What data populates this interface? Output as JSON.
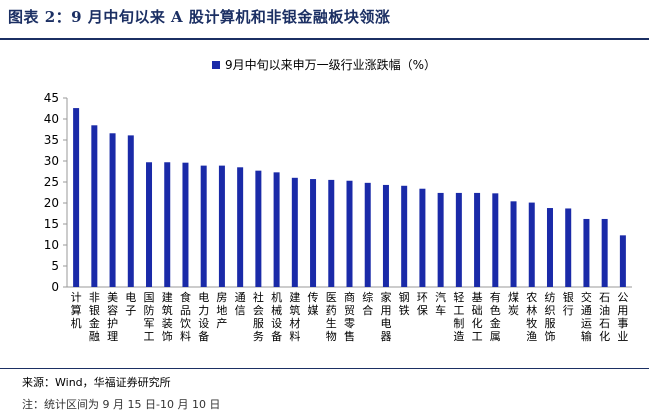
{
  "title": "图表 2：9 月中旬以来 A 股计算机和非银金融板块领涨",
  "source": "来源：Wind，华福证券研究所",
  "note": "注：统计区间为 9 月 15 日-10 月 10 日",
  "colors": {
    "bar": "#1a2aa8",
    "title": "#1b2f63"
  },
  "chart_data": {
    "type": "bar",
    "legend_position": "top",
    "grid": false,
    "ylim": [
      0,
      45
    ],
    "yticks": [
      0,
      5,
      10,
      15,
      20,
      25,
      30,
      35,
      40,
      45
    ],
    "categories": [
      "计算机",
      "非银金融",
      "美容护理",
      "电子",
      "国防军工",
      "建筑装饰",
      "食品饮料",
      "电力设备",
      "房地产",
      "通信",
      "社会服务",
      "机械设备",
      "建筑材料",
      "传媒",
      "医药生物",
      "商贸零售",
      "综合",
      "家用电器",
      "钢铁",
      "环保",
      "汽车",
      "轻工制造",
      "基础化工",
      "有色金属",
      "煤炭",
      "农林牧渔",
      "纺织服饰",
      "银行",
      "交通运输",
      "石油石化",
      "公用事业"
    ],
    "series": [
      {
        "name": "9月中旬以来申万一级行业涨跌幅（%）",
        "values": [
          42.6,
          38.5,
          36.6,
          36.1,
          29.7,
          29.7,
          29.6,
          28.9,
          28.9,
          28.5,
          27.7,
          27.3,
          26.0,
          25.7,
          25.5,
          25.3,
          24.8,
          24.3,
          24.1,
          23.4,
          22.4,
          22.4,
          22.4,
          22.3,
          20.4,
          20.1,
          18.8,
          18.7,
          16.2,
          16.2,
          12.3
        ]
      }
    ]
  }
}
